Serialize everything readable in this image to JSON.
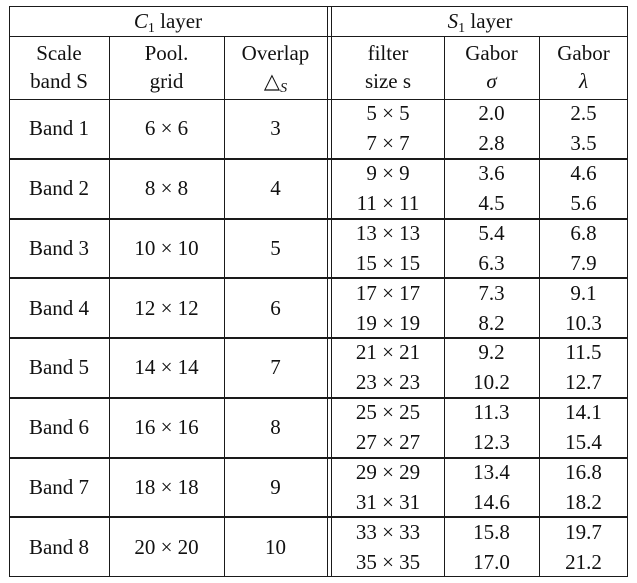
{
  "header": {
    "c1_layer": {
      "symbol": "C",
      "sub": "1",
      "word": "layer"
    },
    "s1_layer": {
      "symbol": "S",
      "sub": "1",
      "word": "layer"
    },
    "col_scale": {
      "line1": "Scale",
      "line2": "band S"
    },
    "col_pool": {
      "line1": "Pool.",
      "line2": "grid"
    },
    "col_overlap": {
      "line1": "Overlap",
      "line2": "△",
      "line2_sub": "S"
    },
    "col_filter": {
      "line1": "filter",
      "line2": "size s"
    },
    "col_sigma": {
      "line1": "Gabor",
      "line2": "σ"
    },
    "col_lambda": {
      "line1": "Gabor",
      "line2": "λ"
    }
  },
  "bands": [
    {
      "band": "Band 1",
      "pool": "6 × 6",
      "overlap": "3",
      "filters": [
        "5 × 5",
        "7 × 7"
      ],
      "sigma": [
        "2.0",
        "2.8"
      ],
      "lambda": [
        "2.5",
        "3.5"
      ]
    },
    {
      "band": "Band 2",
      "pool": "8 × 8",
      "overlap": "4",
      "filters": [
        "9 × 9",
        "11 × 11"
      ],
      "sigma": [
        "3.6",
        "4.5"
      ],
      "lambda": [
        "4.6",
        "5.6"
      ]
    },
    {
      "band": "Band 3",
      "pool": "10 × 10",
      "overlap": "5",
      "filters": [
        "13 × 13",
        "15 × 15"
      ],
      "sigma": [
        "5.4",
        "6.3"
      ],
      "lambda": [
        "6.8",
        "7.9"
      ]
    },
    {
      "band": "Band 4",
      "pool": "12 × 12",
      "overlap": "6",
      "filters": [
        "17 × 17",
        "19 × 19"
      ],
      "sigma": [
        "7.3",
        "8.2"
      ],
      "lambda": [
        "9.1",
        "10.3"
      ]
    },
    {
      "band": "Band 5",
      "pool": "14 × 14",
      "overlap": "7",
      "filters": [
        "21 × 21",
        "23 × 23"
      ],
      "sigma": [
        "9.2",
        "10.2"
      ],
      "lambda": [
        "11.5",
        "12.7"
      ]
    },
    {
      "band": "Band 6",
      "pool": "16 × 16",
      "overlap": "8",
      "filters": [
        "25 × 25",
        "27 × 27"
      ],
      "sigma": [
        "11.3",
        "12.3"
      ],
      "lambda": [
        "14.1",
        "15.4"
      ]
    },
    {
      "band": "Band 7",
      "pool": "18 × 18",
      "overlap": "9",
      "filters": [
        "29 × 29",
        "31 × 31"
      ],
      "sigma": [
        "13.4",
        "14.6"
      ],
      "lambda": [
        "16.8",
        "18.2"
      ]
    },
    {
      "band": "Band 8",
      "pool": "20 × 20",
      "overlap": "10",
      "filters": [
        "33 × 33",
        "35 × 35"
      ],
      "sigma": [
        "15.8",
        "17.0"
      ],
      "lambda": [
        "19.7",
        "21.2"
      ]
    }
  ]
}
